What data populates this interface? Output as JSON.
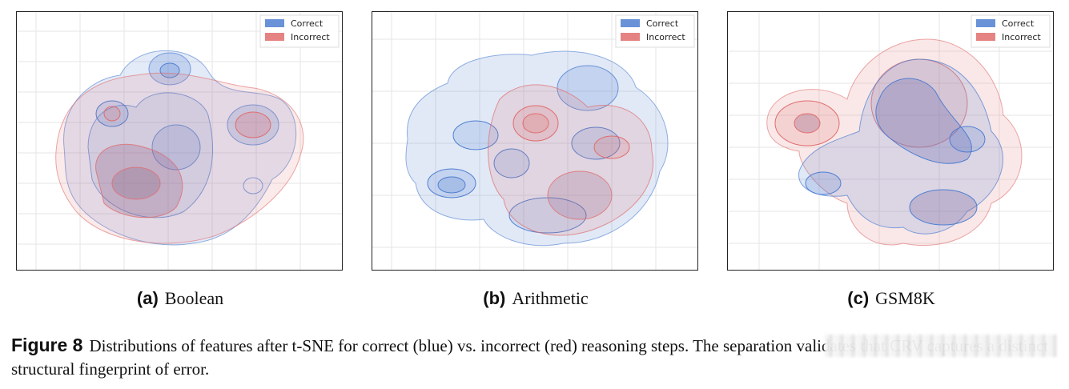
{
  "chart_data": [
    {
      "type": "kde-contour",
      "label": "(a)",
      "title": "Boolean",
      "legend": [
        "Correct",
        "Incorrect"
      ],
      "legend_position": "top-right",
      "grid": true,
      "colors": {
        "Correct": "#4f7fd1",
        "Incorrect": "#e06d6d"
      }
    },
    {
      "type": "kde-contour",
      "label": "(b)",
      "title": "Arithmetic",
      "legend": [
        "Correct",
        "Incorrect"
      ],
      "legend_position": "top-right",
      "grid": true,
      "colors": {
        "Correct": "#4f7fd1",
        "Incorrect": "#e06d6d"
      }
    },
    {
      "type": "kde-contour",
      "label": "(c)",
      "title": "GSM8K",
      "legend": [
        "Correct",
        "Incorrect"
      ],
      "legend_position": "top-right",
      "grid": true,
      "colors": {
        "Correct": "#4f7fd1",
        "Incorrect": "#e06d6d"
      }
    }
  ],
  "caption": {
    "label": "Figure 8",
    "text": "Distributions of features after t-SNE for correct (blue) vs. incorrect (red) reasoning steps. The separation validates that CRV captures a distinct structural fingerprint of error."
  }
}
